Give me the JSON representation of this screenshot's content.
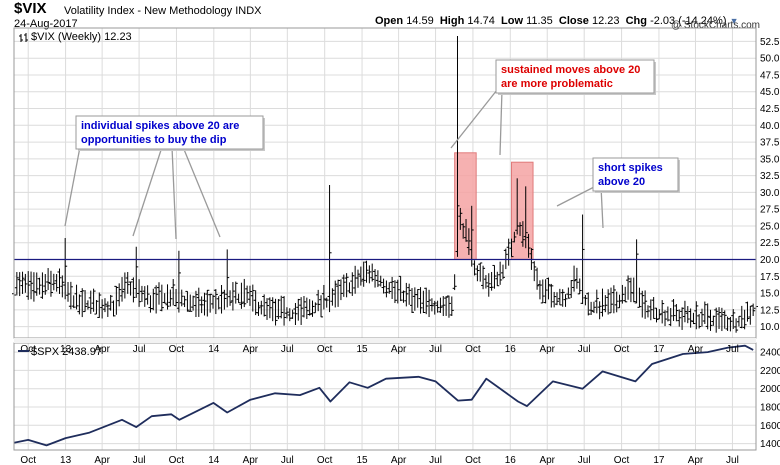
{
  "header": {
    "symbol": "$VIX",
    "name": "Volatility Index - New Methodology",
    "exchange": "INDX",
    "date": "24-Aug-2017",
    "open_label": "Open",
    "open": "14.59",
    "high_label": "High",
    "high": "14.74",
    "low_label": "Low",
    "low": "11.35",
    "close_label": "Close",
    "close": "12.23",
    "chg_label": "Chg",
    "chg": "-2.03 (-14.24%)",
    "watermark": "@ StockCharts.com"
  },
  "colors": {
    "price_bars": "#000000",
    "spx_line": "#1f2d5c",
    "threshold_line": "#1a1a80",
    "highlight_fill": "#f4a3a3",
    "grid": "#dcdcdc",
    "annotation_blue": "#0000cc",
    "annotation_red": "#dd0000"
  },
  "chart_data": [
    {
      "type": "ohlc",
      "legend": "$VIX (Weekly) 12.23",
      "x_tick_labels": [
        "Oct",
        "13",
        "Apr",
        "Jul",
        "Oct",
        "14",
        "Apr",
        "Jul",
        "Oct",
        "15",
        "Apr",
        "Jul",
        "Oct",
        "16",
        "Apr",
        "Jul",
        "Oct",
        "17",
        "Apr",
        "Jul"
      ],
      "x_tick_dates": [
        "2012-10-01",
        "2013-01-01",
        "2013-04-01",
        "2013-07-01",
        "2013-10-01",
        "2014-01-01",
        "2014-04-01",
        "2014-07-01",
        "2014-10-01",
        "2015-01-01",
        "2015-04-01",
        "2015-07-01",
        "2015-10-01",
        "2016-01-01",
        "2016-04-01",
        "2016-07-01",
        "2016-10-01",
        "2017-01-01",
        "2017-04-01",
        "2017-07-01"
      ],
      "x_range": [
        "2012-08-27",
        "2017-08-28"
      ],
      "y_ticks": [
        "10.0",
        "12.5",
        "15.0",
        "17.5",
        "20.0",
        "22.5",
        "25.0",
        "27.5",
        "30.0",
        "32.5",
        "35.0",
        "37.5",
        "40.0",
        "42.5",
        "45.0",
        "47.5",
        "50.0",
        "52.5"
      ],
      "y_range": [
        8.3,
        54.5
      ],
      "reference_line": 20,
      "spikes": [
        {
          "date": "2012-12-28",
          "high": 23.2,
          "close": 19.0
        },
        {
          "date": "2013-06-21",
          "high": 21.9,
          "close": 18.9
        },
        {
          "date": "2013-10-08",
          "high": 21.3,
          "close": 18.0
        },
        {
          "date": "2014-02-03",
          "high": 21.5,
          "close": 17.3
        },
        {
          "date": "2014-10-15",
          "high": 31.1,
          "close": 21.0
        },
        {
          "date": "2015-08-24",
          "high": 53.3,
          "close": 28.0
        },
        {
          "date": "2015-09-28",
          "high": 28.0,
          "close": 24.4
        },
        {
          "date": "2016-01-20",
          "high": 32.1,
          "close": 25.0
        },
        {
          "date": "2016-02-11",
          "high": 30.9,
          "close": 24.0
        },
        {
          "date": "2016-06-24",
          "high": 26.7,
          "close": 21.5
        },
        {
          "date": "2016-11-04",
          "high": 23.0,
          "close": 20.8
        }
      ],
      "highlight_ranges": [
        {
          "start": "2015-08-17",
          "end": "2015-10-09",
          "low": 20.0,
          "high": 35.9
        },
        {
          "start": "2016-01-04",
          "end": "2016-02-26",
          "low": 20.0,
          "high": 34.5
        }
      ],
      "annotations": [
        {
          "text": "individual spikes above 20 are opportunities to buy the dip",
          "line1": "individual spikes above 20 are",
          "line2": "opportunities to buy the dip",
          "color": "#0000cc",
          "targets": [
            "2012-12-28",
            "2013-06-21",
            "2013-10-08",
            "2014-02-03"
          ]
        },
        {
          "text": "sustained moves above 20 are more problematic",
          "line1": "sustained moves above 20",
          "line2": "are more problematic",
          "color": "#dd0000",
          "targets": [
            "2015-09-07",
            "2016-01-25"
          ]
        },
        {
          "text": "short spikes above 20",
          "line1": "short spikes",
          "line2": "above 20",
          "color": "#0000cc",
          "targets": [
            "2016-06-24",
            "2016-11-04"
          ]
        }
      ]
    },
    {
      "type": "line",
      "legend": "$SPX 2438.97",
      "x_tick_labels": [
        "Oct",
        "13",
        "Apr",
        "Jul",
        "Oct",
        "14",
        "Apr",
        "Jul",
        "Oct",
        "15",
        "Apr",
        "Jul",
        "Oct",
        "16",
        "Apr",
        "Jul",
        "Oct",
        "17",
        "Apr",
        "Jul"
      ],
      "y_ticks": [
        "1400",
        "1600",
        "1800",
        "2000",
        "2200",
        "2400"
      ],
      "y_range": [
        1330,
        2500
      ],
      "series": [
        {
          "x": [
            "2012-08-27",
            "2012-10-01",
            "2012-11-15",
            "2013-01-01",
            "2013-03-01",
            "2013-05-20",
            "2013-06-24",
            "2013-08-01",
            "2013-09-18",
            "2013-10-08",
            "2013-12-31",
            "2014-02-03",
            "2014-04-01",
            "2014-06-01",
            "2014-08-01",
            "2014-09-18",
            "2014-10-15",
            "2014-12-01",
            "2015-01-15",
            "2015-03-01",
            "2015-05-20",
            "2015-07-01",
            "2015-08-25",
            "2015-09-28",
            "2015-11-03",
            "2016-01-20",
            "2016-02-11",
            "2016-04-15",
            "2016-06-27",
            "2016-08-15",
            "2016-11-04",
            "2016-12-15",
            "2017-03-01",
            "2017-05-01",
            "2017-06-20",
            "2017-08-01",
            "2017-08-21"
          ],
          "y": [
            1410,
            1440,
            1380,
            1460,
            1520,
            1660,
            1580,
            1700,
            1720,
            1660,
            1845,
            1740,
            1880,
            1950,
            1930,
            2010,
            1860,
            2070,
            2010,
            2110,
            2130,
            2080,
            1870,
            1880,
            2110,
            1860,
            1810,
            2080,
            2000,
            2190,
            2080,
            2270,
            2380,
            2400,
            2450,
            2470,
            2425
          ]
        }
      ]
    }
  ]
}
